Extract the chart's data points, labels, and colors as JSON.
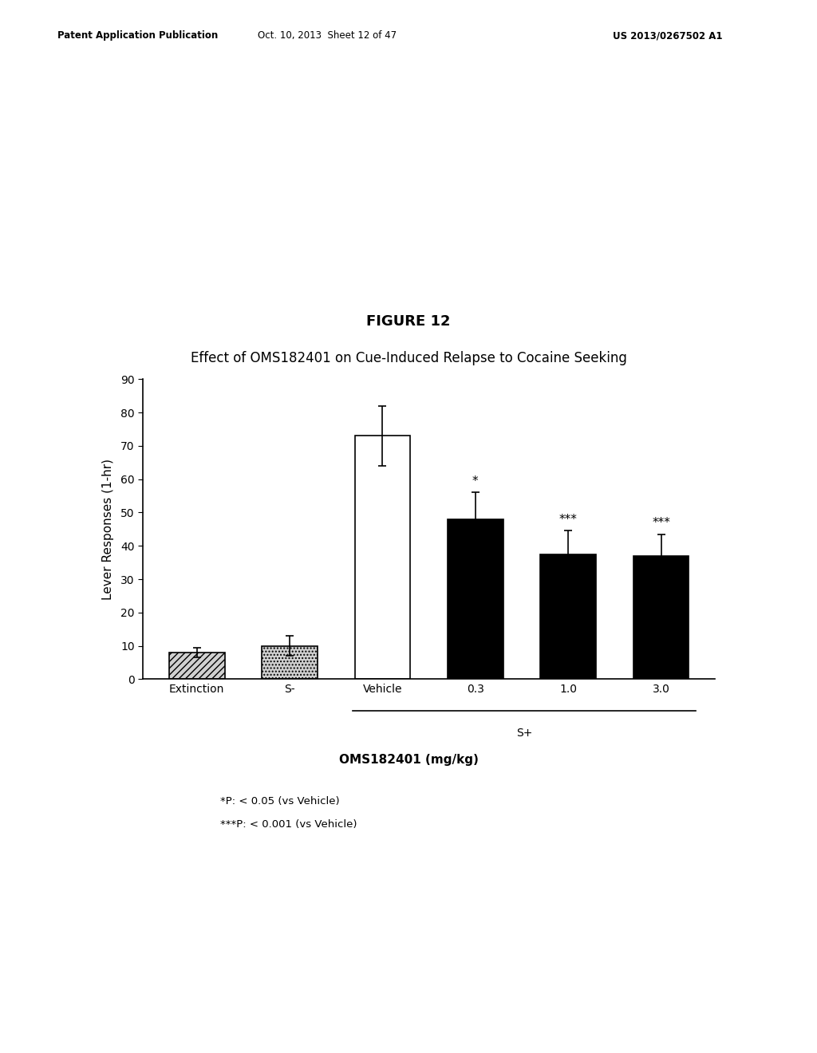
{
  "title": "FIGURE 12",
  "subtitle": "Effect of OMS182401 on Cue-Induced Relapse to Cocaine Seeking",
  "header_left": "Patent Application Publication",
  "header_middle": "Oct. 10, 2013  Sheet 12 of 47",
  "header_right": "US 2013/0267502 A1",
  "categories": [
    "Extinction",
    "S-",
    "Vehicle",
    "0.3",
    "1.0",
    "3.0"
  ],
  "values": [
    8.0,
    10.0,
    73.0,
    48.0,
    37.5,
    37.0
  ],
  "errors": [
    1.5,
    3.0,
    9.0,
    8.0,
    7.0,
    6.5
  ],
  "bar_colors": [
    "hatched_gray",
    "dotted_gray",
    "white",
    "black",
    "black",
    "black"
  ],
  "ylabel": "Lever Responses (1-hr)",
  "ylim": [
    0,
    90
  ],
  "yticks": [
    0,
    10,
    20,
    30,
    40,
    50,
    60,
    70,
    80,
    90
  ],
  "xlabel_splus": "S+",
  "xlabel_bold": "OMS182401 (mg/kg)",
  "sig_labels": [
    "",
    "",
    "",
    "*",
    "***",
    "***"
  ],
  "footnote1": "*P: < 0.05 (vs Vehicle)",
  "footnote2": "***P: < 0.001 (vs Vehicle)",
  "background_color": "#ffffff",
  "title_fontsize": 13,
  "subtitle_fontsize": 12,
  "axis_fontsize": 11,
  "tick_fontsize": 10,
  "header_fontsize": 8.5
}
